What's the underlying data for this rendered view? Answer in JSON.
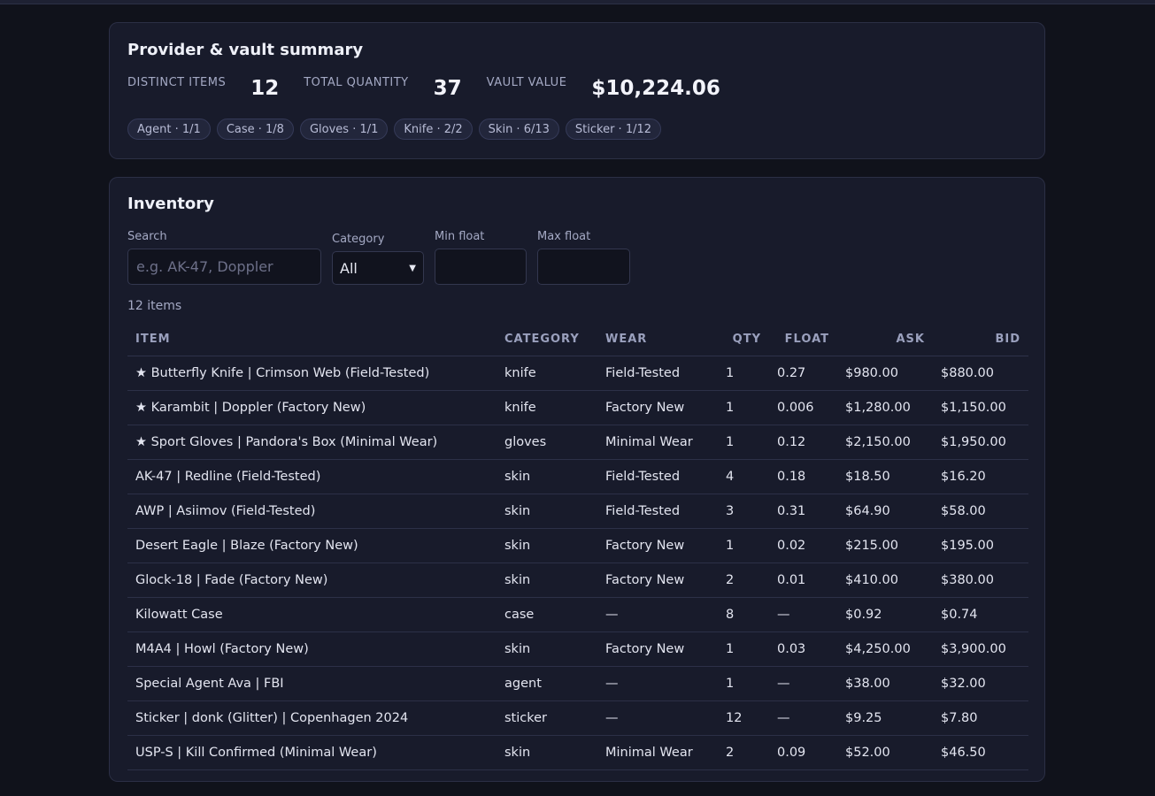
{
  "summary": {
    "title": "Provider & vault summary",
    "stats": [
      {
        "label": "DISTINCT ITEMS",
        "value": "12"
      },
      {
        "label": "TOTAL QUANTITY",
        "value": "37"
      },
      {
        "label": "VAULT VALUE",
        "value": "$10,224.06"
      }
    ],
    "pills": [
      "Agent · 1/1",
      "Case · 1/8",
      "Gloves · 1/1",
      "Knife · 2/2",
      "Skin · 6/13",
      "Sticker · 1/12"
    ]
  },
  "inventory": {
    "title": "Inventory",
    "filters": {
      "search_label": "Search",
      "search_placeholder": "e.g. AK-47, Doppler",
      "category_label": "Category",
      "category_value": "All",
      "min_float_label": "Min float",
      "max_float_label": "Max float"
    },
    "count_text": "12 items",
    "columns": [
      "ITEM",
      "CATEGORY",
      "WEAR",
      "QTY",
      "FLOAT",
      "ASK",
      "BID"
    ],
    "rows": [
      [
        "★ Butterfly Knife | Crimson Web (Field-Tested)",
        "knife",
        "Field-Tested",
        "1",
        "0.27",
        "$980.00",
        "$880.00"
      ],
      [
        "★ Karambit | Doppler (Factory New)",
        "knife",
        "Factory New",
        "1",
        "0.006",
        "$1,280.00",
        "$1,150.00"
      ],
      [
        "★ Sport Gloves | Pandora's Box (Minimal Wear)",
        "gloves",
        "Minimal Wear",
        "1",
        "0.12",
        "$2,150.00",
        "$1,950.00"
      ],
      [
        "AK-47 | Redline (Field-Tested)",
        "skin",
        "Field-Tested",
        "4",
        "0.18",
        "$18.50",
        "$16.20"
      ],
      [
        "AWP | Asiimov (Field-Tested)",
        "skin",
        "Field-Tested",
        "3",
        "0.31",
        "$64.90",
        "$58.00"
      ],
      [
        "Desert Eagle | Blaze (Factory New)",
        "skin",
        "Factory New",
        "1",
        "0.02",
        "$215.00",
        "$195.00"
      ],
      [
        "Glock-18 | Fade (Factory New)",
        "skin",
        "Factory New",
        "2",
        "0.01",
        "$410.00",
        "$380.00"
      ],
      [
        "Kilowatt Case",
        "case",
        "—",
        "8",
        "—",
        "$0.92",
        "$0.74"
      ],
      [
        "M4A4 | Howl (Factory New)",
        "skin",
        "Factory New",
        "1",
        "0.03",
        "$4,250.00",
        "$3,900.00"
      ],
      [
        "Special Agent Ava | FBI",
        "agent",
        "—",
        "1",
        "—",
        "$38.00",
        "$32.00"
      ],
      [
        "Sticker | donk (Glitter) | Copenhagen 2024",
        "sticker",
        "—",
        "12",
        "—",
        "$9.25",
        "$7.80"
      ],
      [
        "USP-S | Kill Confirmed (Minimal Wear)",
        "skin",
        "Minimal Wear",
        "2",
        "0.09",
        "$52.00",
        "$46.50"
      ]
    ]
  }
}
